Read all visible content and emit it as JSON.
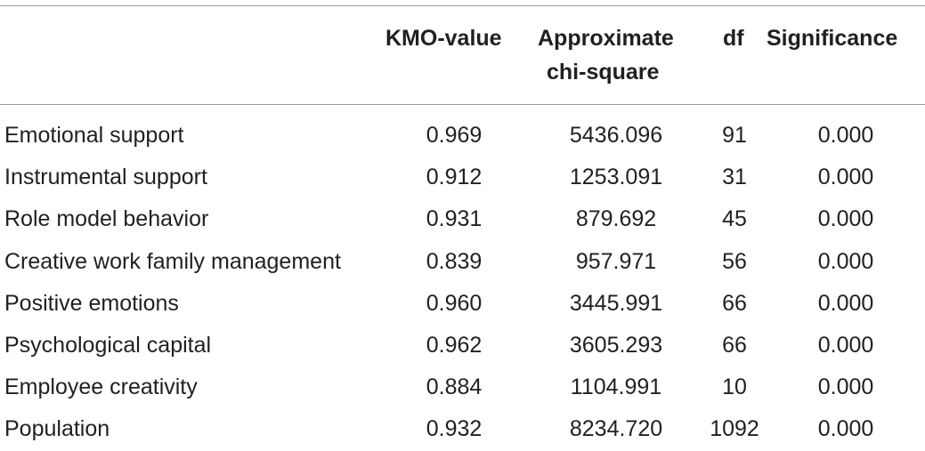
{
  "table": {
    "headers": {
      "kmo": "KMO-value",
      "chi_line1": "Approximate",
      "chi_line2": "chi-square",
      "df": "df",
      "significance": "Significance"
    },
    "rows": [
      {
        "name": "Emotional support",
        "kmo": "0.969",
        "chi": "5436.096",
        "df": "91",
        "sig": "0.000"
      },
      {
        "name": "Instrumental support",
        "kmo": "0.912",
        "chi": "1253.091",
        "df": "31",
        "sig": "0.000"
      },
      {
        "name": "Role model behavior",
        "kmo": "0.931",
        "chi": "879.692",
        "df": "45",
        "sig": "0.000"
      },
      {
        "name": "Creative work family management",
        "kmo": "0.839",
        "chi": "957.971",
        "df": "56",
        "sig": "0.000"
      },
      {
        "name": "Positive emotions",
        "kmo": "0.960",
        "chi": "3445.991",
        "df": "66",
        "sig": "0.000"
      },
      {
        "name": "Psychological capital",
        "kmo": "0.962",
        "chi": "3605.293",
        "df": "66",
        "sig": "0.000"
      },
      {
        "name": "Employee creativity",
        "kmo": "0.884",
        "chi": "1104.991",
        "df": "10",
        "sig": "0.000"
      },
      {
        "name": "Population",
        "kmo": "0.932",
        "chi": "8234.720",
        "df": "1092",
        "sig": "0.000"
      }
    ]
  }
}
